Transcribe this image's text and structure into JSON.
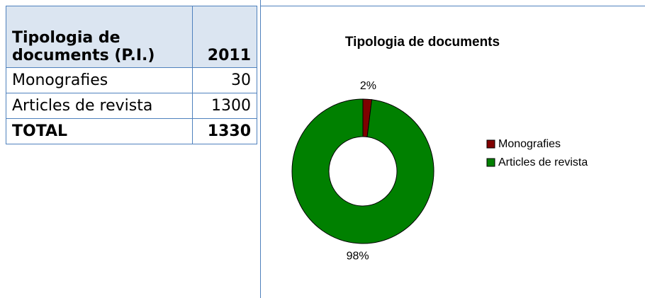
{
  "table": {
    "header": [
      "Tipologia de documents (P.I.)",
      "2011"
    ],
    "rows": [
      [
        "Monografies",
        30
      ],
      [
        "Articles de revista",
        1300
      ]
    ],
    "total": [
      "TOTAL",
      1330
    ]
  },
  "chart_data": {
    "type": "donut",
    "title": "Tipologia de documents",
    "categories": [
      "Monografies",
      "Articles de revista"
    ],
    "values": [
      2,
      98
    ],
    "value_labels": [
      "2%",
      "98%"
    ],
    "colors": [
      "#800000",
      "#008000"
    ],
    "legend": "right"
  }
}
